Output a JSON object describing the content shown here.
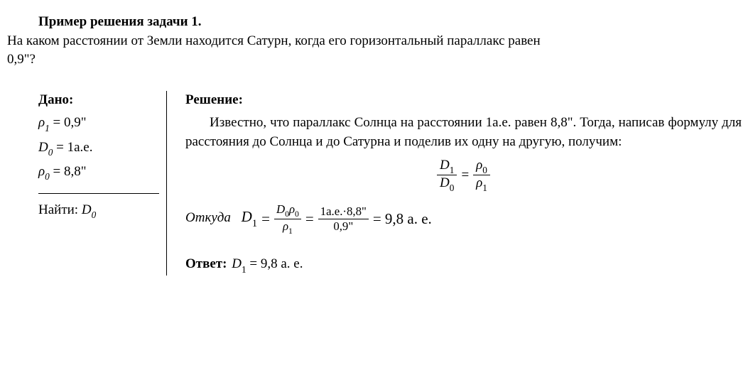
{
  "title": "Пример решения задачи 1.",
  "problem_line1": "На каком расстоянии от Земли находится Сатурн, когда его горизонтальный параллакс равен",
  "problem_line2": "0,9\"?",
  "given": {
    "label": "Дано:",
    "rho1_sym_prefix": "ρ",
    "rho1_sub": "1",
    "rho1_eq": " = 0,9\"",
    "D0_sym_prefix": "D",
    "D0_sub": "0",
    "D0_eq": " = 1а.е.",
    "rho0_sym_prefix": "ρ",
    "rho0_sub": "0",
    "rho0_eq": " = 8,8\"",
    "find_label": "Найти: ",
    "find_sym_prefix": "D",
    "find_sub": "0"
  },
  "solution": {
    "label": "Решение:",
    "text": "Известно, что параллакс Солнца на расстоянии 1а.е. равен 8,8\". Тогда, написав формулу для расстояния до Солнца и до Сатурна и поделив их одну на другую, получим:",
    "eq": {
      "D": "D",
      "rho": "ρ",
      "s0": "0",
      "s1": "1",
      "equals": "="
    },
    "derive": {
      "lead": "Откуда",
      "D1_sym": "D",
      "D1_sub": "1",
      "equals": "=",
      "f1_num_D": "D",
      "f1_num_D_sub": "0",
      "f1_num_rho": "ρ",
      "f1_num_rho_sub": "0",
      "f1_den_rho": "ρ",
      "f1_den_rho_sub": "1",
      "f2_num": "1а.е.·8,8\"",
      "f2_den": "0,9\"",
      "result": "= 9,8 а. е."
    },
    "answer": {
      "label": "Ответ:",
      "sym": "D",
      "sub": "1",
      "value": " = 9,8 а. е."
    }
  },
  "colors": {
    "text": "#000000",
    "background": "#ffffff",
    "rule": "#000000"
  },
  "fonts": {
    "body": "Times New Roman",
    "math": "Cambria Math",
    "base_size_pt": 14
  }
}
